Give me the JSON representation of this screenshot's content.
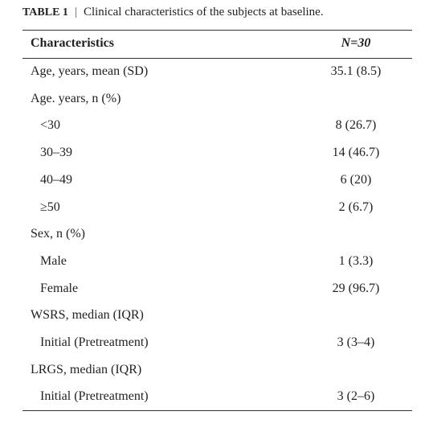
{
  "caption": {
    "label": "TABLE 1",
    "separator": "|",
    "text": "Clinical characteristics of the subjects at baseline."
  },
  "table": {
    "header": [
      "Characteristics",
      "N=30"
    ],
    "rows": [
      [
        "Age, years, mean (SD)",
        "35.1 (8.5)"
      ],
      [
        "Age. years, n (%)"
      ],
      [
        "<30",
        "8 (26.7)"
      ],
      [
        "30–39",
        "14 (46.7)"
      ],
      [
        "40–49",
        "6 (20)"
      ],
      [
        "≥50",
        "2 (6.7)"
      ],
      [
        "Sex, n (%)"
      ],
      [
        "Male",
        "1 (3.3)"
      ],
      [
        "Female",
        "29 (96.7)"
      ],
      [
        "WSRS, median (IQR)"
      ],
      [
        "Initial (Pretreatment)",
        "3 (3–4)"
      ],
      [
        "LRGS, median (IQR)"
      ],
      [
        "Initial (Pretreatment)",
        "3 (2–6)"
      ]
    ]
  }
}
